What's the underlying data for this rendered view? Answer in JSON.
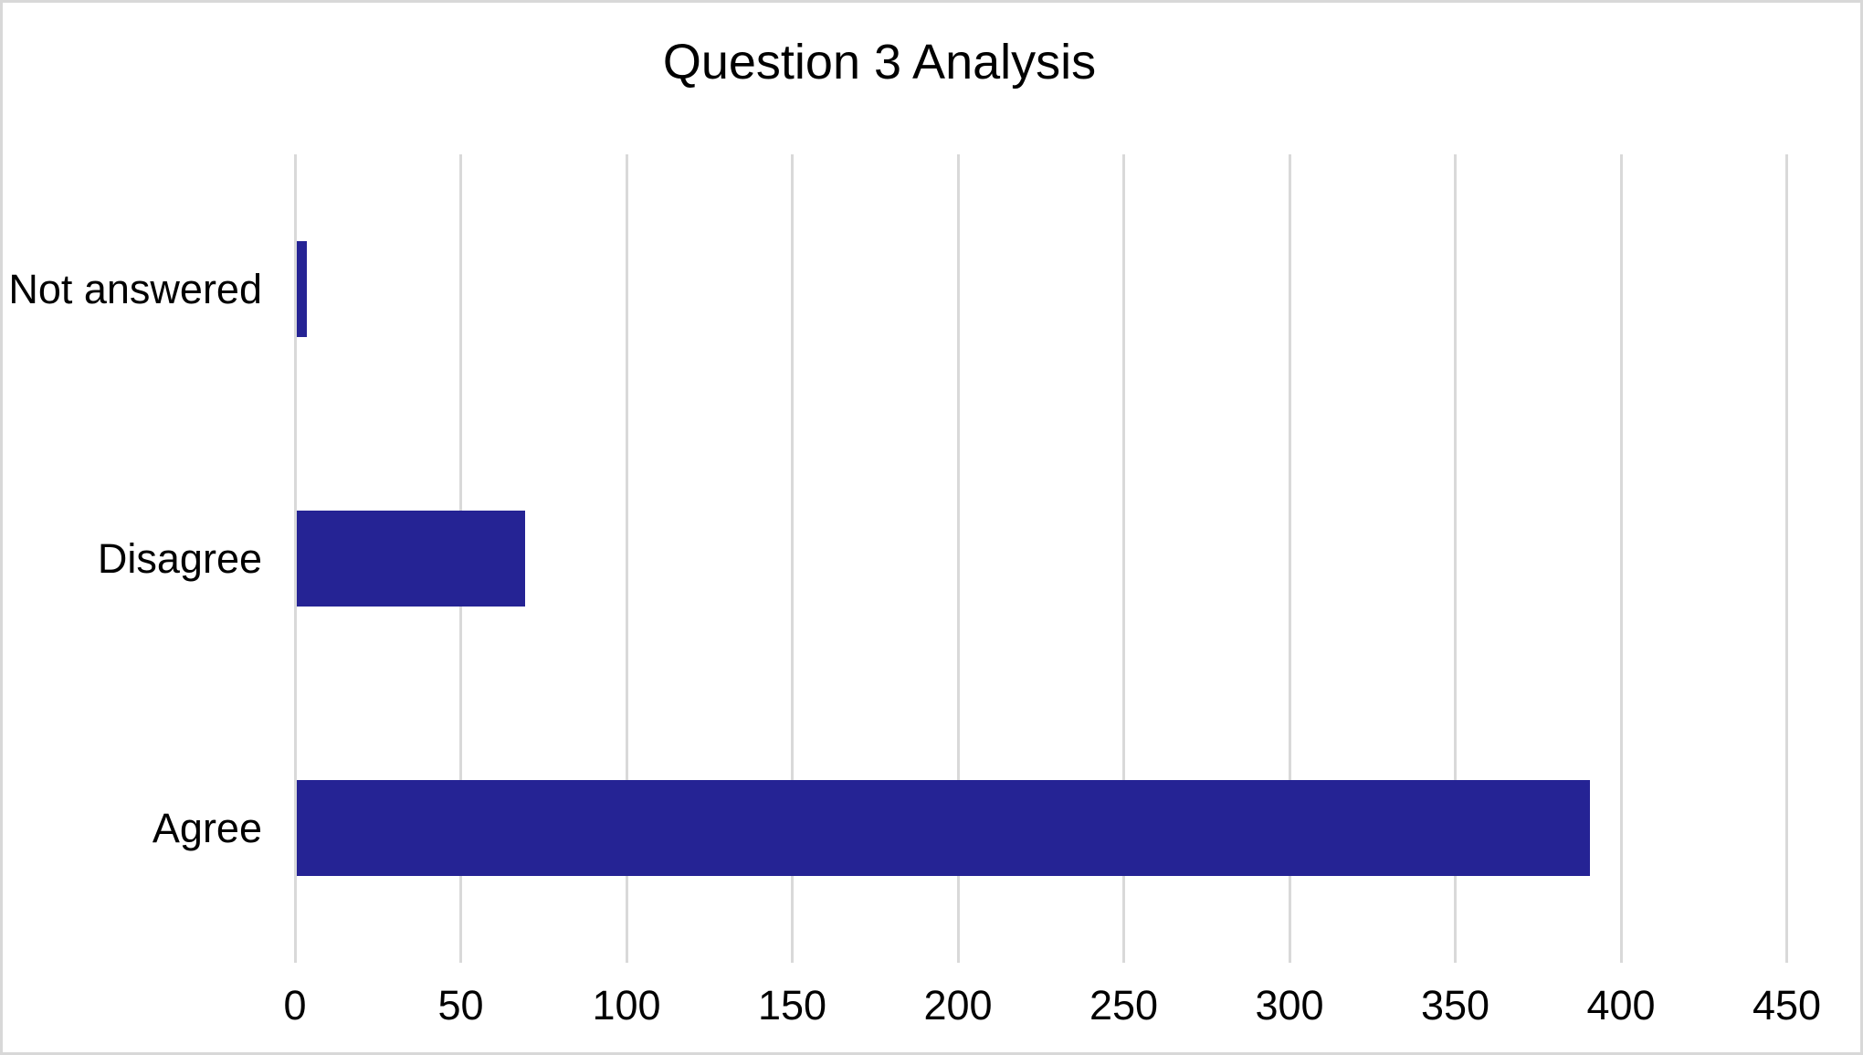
{
  "chart_data": {
    "type": "bar",
    "orientation": "horizontal",
    "title": "Question 3 Analysis",
    "categories": [
      "Not answered",
      "Disagree",
      "Agree"
    ],
    "values": [
      3,
      69,
      390
    ],
    "xlabel": "",
    "ylabel": "",
    "xlim": [
      0,
      450
    ],
    "xticks": [
      0,
      50,
      100,
      150,
      200,
      250,
      300,
      350,
      400,
      450
    ],
    "grid": "vertical",
    "legend": "none",
    "colors": {
      "bar": "#252394",
      "gridline": "#d9d9d9",
      "text": "#000000",
      "background": "#ffffff",
      "frame_border": "#d8d8d8"
    }
  }
}
